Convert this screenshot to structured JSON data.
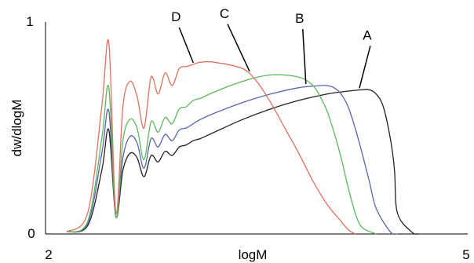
{
  "chart_data": {
    "type": "line",
    "title": "",
    "xlabel": "logM",
    "ylabel": "dw/dlogM",
    "xlim": [
      2,
      5
    ],
    "ylim": [
      0,
      1
    ],
    "x_ticks": [
      "2",
      "5"
    ],
    "y_ticks": [
      "0",
      "1"
    ],
    "grid": false,
    "series": [
      {
        "label": "A",
        "color": "#222222",
        "x": [
          2.15,
          2.3,
          2.4,
          2.45,
          2.5,
          2.55,
          2.6,
          2.65,
          2.7,
          2.75,
          2.8,
          2.85,
          2.9,
          2.95,
          3.0,
          3.05,
          3.1,
          3.2,
          3.4,
          3.6,
          3.8,
          4.0,
          4.1,
          4.25,
          4.3,
          4.35,
          4.4,
          4.45,
          4.48,
          4.5,
          4.6,
          4.65
        ],
        "values": [
          0.01,
          0.04,
          0.3,
          0.49,
          0.08,
          0.3,
          0.38,
          0.36,
          0.27,
          0.37,
          0.34,
          0.39,
          0.37,
          0.41,
          0.42,
          0.44,
          0.45,
          0.48,
          0.54,
          0.59,
          0.63,
          0.66,
          0.67,
          0.68,
          0.68,
          0.66,
          0.6,
          0.45,
          0.3,
          0.1,
          0.01,
          0.0
        ]
      },
      {
        "label": "B",
        "color": "#5b63b0",
        "x": [
          2.15,
          2.3,
          2.4,
          2.45,
          2.5,
          2.55,
          2.6,
          2.65,
          2.7,
          2.75,
          2.8,
          2.85,
          2.9,
          2.95,
          3.0,
          3.05,
          3.1,
          3.2,
          3.4,
          3.6,
          3.8,
          3.95,
          4.0,
          4.05,
          4.1,
          4.15,
          4.2,
          4.25,
          4.3,
          4.35,
          4.45,
          4.5
        ],
        "values": [
          0.01,
          0.05,
          0.38,
          0.58,
          0.08,
          0.36,
          0.46,
          0.43,
          0.31,
          0.45,
          0.41,
          0.47,
          0.44,
          0.49,
          0.5,
          0.52,
          0.54,
          0.57,
          0.62,
          0.66,
          0.69,
          0.7,
          0.7,
          0.69,
          0.66,
          0.6,
          0.5,
          0.38,
          0.25,
          0.12,
          0.01,
          0.0
        ]
      },
      {
        "label": "C",
        "color": "#5cb85c",
        "x": [
          2.15,
          2.3,
          2.4,
          2.45,
          2.5,
          2.55,
          2.6,
          2.65,
          2.7,
          2.75,
          2.8,
          2.85,
          2.9,
          2.95,
          3.0,
          3.05,
          3.1,
          3.2,
          3.4,
          3.6,
          3.8,
          3.9,
          3.95,
          4.0,
          4.05,
          4.1,
          4.15,
          4.2,
          4.25,
          4.35
        ],
        "values": [
          0.01,
          0.06,
          0.45,
          0.69,
          0.08,
          0.44,
          0.54,
          0.5,
          0.35,
          0.53,
          0.48,
          0.55,
          0.52,
          0.59,
          0.6,
          0.63,
          0.64,
          0.67,
          0.72,
          0.75,
          0.74,
          0.7,
          0.65,
          0.58,
          0.48,
          0.36,
          0.22,
          0.1,
          0.03,
          0.0
        ]
      },
      {
        "label": "D",
        "color": "#e07060",
        "x": [
          2.15,
          2.3,
          2.4,
          2.45,
          2.5,
          2.55,
          2.6,
          2.65,
          2.7,
          2.75,
          2.8,
          2.85,
          2.9,
          2.95,
          3.0,
          3.05,
          3.1,
          3.2,
          3.4,
          3.5,
          3.6,
          3.7,
          3.8,
          3.9,
          4.0,
          4.1,
          4.15,
          4.2
        ],
        "values": [
          0.01,
          0.1,
          0.6,
          0.9,
          0.1,
          0.6,
          0.72,
          0.65,
          0.5,
          0.74,
          0.66,
          0.76,
          0.7,
          0.78,
          0.79,
          0.8,
          0.81,
          0.81,
          0.78,
          0.72,
          0.62,
          0.5,
          0.38,
          0.25,
          0.14,
          0.06,
          0.02,
          0.0
        ]
      }
    ],
    "annotations": [
      {
        "text": "D",
        "x": 3.05,
        "y": 0.8
      },
      {
        "text": "C",
        "x": 3.45,
        "y": 0.76
      },
      {
        "text": "B",
        "x": 3.85,
        "y": 0.7
      },
      {
        "text": "A",
        "x": 4.23,
        "y": 0.68
      }
    ]
  }
}
